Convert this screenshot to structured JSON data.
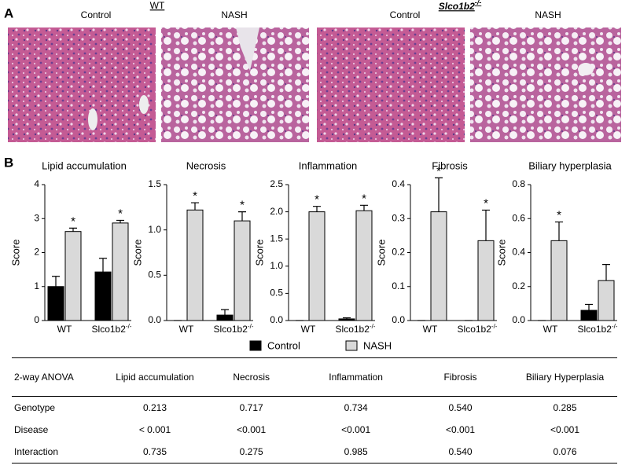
{
  "panel_a": {
    "label": "A",
    "groups": [
      {
        "name": "WT",
        "conditions": [
          "Control",
          "NASH"
        ]
      },
      {
        "name": "Slco1b2",
        "superscript": "-/-",
        "conditions": [
          "Control",
          "NASH"
        ]
      }
    ]
  },
  "panel_b": {
    "label": "B",
    "legend": [
      {
        "name": "Control",
        "color": "#000000"
      },
      {
        "name": "NASH",
        "color": "#d9d9d9"
      }
    ],
    "genotype_superscript": "-/-"
  },
  "chart_data": [
    {
      "type": "bar",
      "title": "Lipid accumulation",
      "ylabel": "Score",
      "categories": [
        "WT",
        "Slco1b2"
      ],
      "ylim": [
        0,
        4
      ],
      "yticks": [
        0,
        1,
        2,
        3,
        4
      ],
      "series": [
        {
          "color": "#000000",
          "values": [
            1.0,
            1.43
          ],
          "errors": [
            0.3,
            0.4
          ],
          "stars": [
            null,
            null
          ]
        },
        {
          "color": "#d9d9d9",
          "values": [
            2.62,
            2.87
          ],
          "errors": [
            0.1,
            0.08
          ],
          "stars": [
            "*",
            "*"
          ]
        }
      ]
    },
    {
      "type": "bar",
      "title": "Necrosis",
      "ylabel": "Score",
      "categories": [
        "WT",
        "Slco1b2"
      ],
      "ylim": [
        0,
        1.5
      ],
      "yticks": [
        {
          "value": 0,
          "label": "0.0"
        },
        {
          "value": 0.5,
          "label": "0.5"
        },
        {
          "value": 1,
          "label": "1.0"
        },
        {
          "value": 1.5,
          "label": "1.5"
        }
      ],
      "series": [
        {
          "color": "#000000",
          "values": [
            0,
            0.06
          ],
          "errors": [
            0,
            0.06
          ],
          "stars": [
            null,
            null
          ]
        },
        {
          "color": "#d9d9d9",
          "values": [
            1.22,
            1.1
          ],
          "errors": [
            0.08,
            0.1
          ],
          "stars": [
            "*",
            "*"
          ]
        }
      ]
    },
    {
      "type": "bar",
      "title": "Inflammation",
      "ylabel": "Score",
      "categories": [
        "WT",
        "Slco1b2"
      ],
      "ylim": [
        0,
        2.5
      ],
      "yticks": [
        {
          "value": 0,
          "label": "0.0"
        },
        {
          "value": 0.5,
          "label": "0.5"
        },
        {
          "value": 1,
          "label": "1.0"
        },
        {
          "value": 1.5,
          "label": "1.5"
        },
        {
          "value": 2,
          "label": "2.0"
        },
        {
          "value": 2.5,
          "label": "2.5"
        }
      ],
      "series": [
        {
          "color": "#000000",
          "values": [
            0,
            0.03
          ],
          "errors": [
            0,
            0.02
          ],
          "stars": [
            null,
            null
          ]
        },
        {
          "color": "#d9d9d9",
          "values": [
            2.0,
            2.02
          ],
          "errors": [
            0.1,
            0.1
          ],
          "stars": [
            "*",
            "*"
          ]
        }
      ]
    },
    {
      "type": "bar",
      "title": "Fibrosis",
      "ylabel": "Score",
      "categories": [
        "WT",
        "Slco1b2"
      ],
      "ylim": [
        0,
        0.4
      ],
      "yticks": [
        {
          "value": 0,
          "label": "0.0"
        },
        0.1,
        0.2,
        0.3,
        0.4
      ],
      "series": [
        {
          "color": "#000000",
          "values": [
            0,
            0
          ],
          "errors": [
            0,
            0
          ],
          "stars": [
            null,
            null
          ]
        },
        {
          "color": "#d9d9d9",
          "values": [
            0.32,
            0.235
          ],
          "errors": [
            0.1,
            0.09
          ],
          "stars": [
            "*",
            "*"
          ]
        }
      ]
    },
    {
      "type": "bar",
      "title": "Biliary hyperplasia",
      "ylabel": "Score",
      "categories": [
        "WT",
        "Slco1b2"
      ],
      "ylim": [
        0,
        0.8
      ],
      "yticks": [
        {
          "value": 0,
          "label": "0.0"
        },
        0.2,
        0.4,
        0.6,
        0.8
      ],
      "series": [
        {
          "color": "#000000",
          "values": [
            0,
            0.06
          ],
          "errors": [
            0,
            0.035
          ],
          "stars": [
            null,
            null
          ]
        },
        {
          "color": "#d9d9d9",
          "values": [
            0.47,
            0.235
          ],
          "errors": [
            0.11,
            0.095
          ],
          "stars": [
            "*",
            null
          ]
        }
      ]
    }
  ],
  "table": {
    "header": [
      "2-way ANOVA",
      "Lipid accumulation",
      "Necrosis",
      "Inflammation",
      "Fibrosis",
      "Biliary Hyperplasia"
    ],
    "rows": [
      [
        "Genotype",
        "0.213",
        "0.717",
        "0.734",
        "0.540",
        "0.285"
      ],
      [
        "Disease",
        "< 0.001",
        "<0.001",
        "<0.001",
        "<0.001",
        "<0.001"
      ],
      [
        "Interaction",
        "0.735",
        "0.275",
        "0.985",
        "0.540",
        "0.076"
      ]
    ]
  }
}
